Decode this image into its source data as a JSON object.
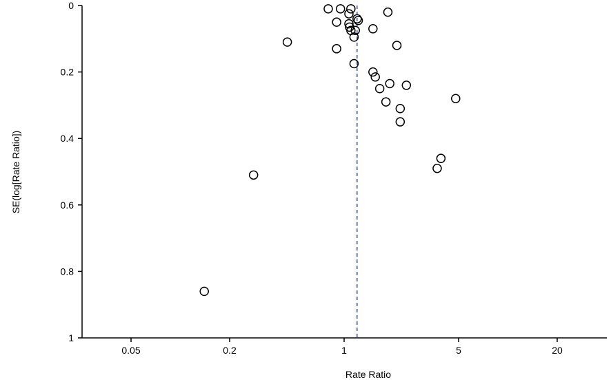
{
  "chart_data": {
    "type": "scatter",
    "title": "",
    "xlabel": "Rate Ratio",
    "ylabel": "SE(log[Rate Ratio])",
    "x_scale": "log",
    "x_ticks": [
      0.05,
      0.2,
      1,
      5,
      20
    ],
    "x_tick_labels": [
      "0.05",
      "0.2",
      "1",
      "5",
      "20"
    ],
    "xlim": [
      0.02,
      50
    ],
    "y_ticks": [
      0,
      0.2,
      0.4,
      0.6,
      0.8,
      1
    ],
    "y_tick_labels": [
      "0",
      "0.2",
      "0.4",
      "0.6",
      "0.8",
      "1"
    ],
    "ylim": [
      0,
      1
    ],
    "y_inverted": true,
    "grid": false,
    "reference_line": {
      "x": 1.2,
      "style": "dashed",
      "color": "#1f2fbf"
    },
    "series": [
      {
        "points": [
          {
            "x": 0.8,
            "y": 0.01
          },
          {
            "x": 0.95,
            "y": 0.01
          },
          {
            "x": 1.1,
            "y": 0.01
          },
          {
            "x": 1.07,
            "y": 0.025
          },
          {
            "x": 1.85,
            "y": 0.02
          },
          {
            "x": 1.2,
            "y": 0.04
          },
          {
            "x": 1.22,
            "y": 0.045
          },
          {
            "x": 0.9,
            "y": 0.05
          },
          {
            "x": 1.07,
            "y": 0.055
          },
          {
            "x": 1.08,
            "y": 0.065
          },
          {
            "x": 1.1,
            "y": 0.075
          },
          {
            "x": 1.17,
            "y": 0.075
          },
          {
            "x": 1.5,
            "y": 0.07
          },
          {
            "x": 1.15,
            "y": 0.095
          },
          {
            "x": 0.45,
            "y": 0.11
          },
          {
            "x": 0.9,
            "y": 0.13
          },
          {
            "x": 2.1,
            "y": 0.12
          },
          {
            "x": 1.15,
            "y": 0.175
          },
          {
            "x": 1.5,
            "y": 0.2
          },
          {
            "x": 1.55,
            "y": 0.215
          },
          {
            "x": 1.9,
            "y": 0.235
          },
          {
            "x": 1.65,
            "y": 0.25
          },
          {
            "x": 2.4,
            "y": 0.24
          },
          {
            "x": 4.8,
            "y": 0.28
          },
          {
            "x": 1.8,
            "y": 0.29
          },
          {
            "x": 2.2,
            "y": 0.31
          },
          {
            "x": 2.2,
            "y": 0.35
          },
          {
            "x": 3.9,
            "y": 0.46
          },
          {
            "x": 3.7,
            "y": 0.49
          },
          {
            "x": 0.28,
            "y": 0.51
          },
          {
            "x": 0.14,
            "y": 0.86
          }
        ]
      }
    ]
  }
}
